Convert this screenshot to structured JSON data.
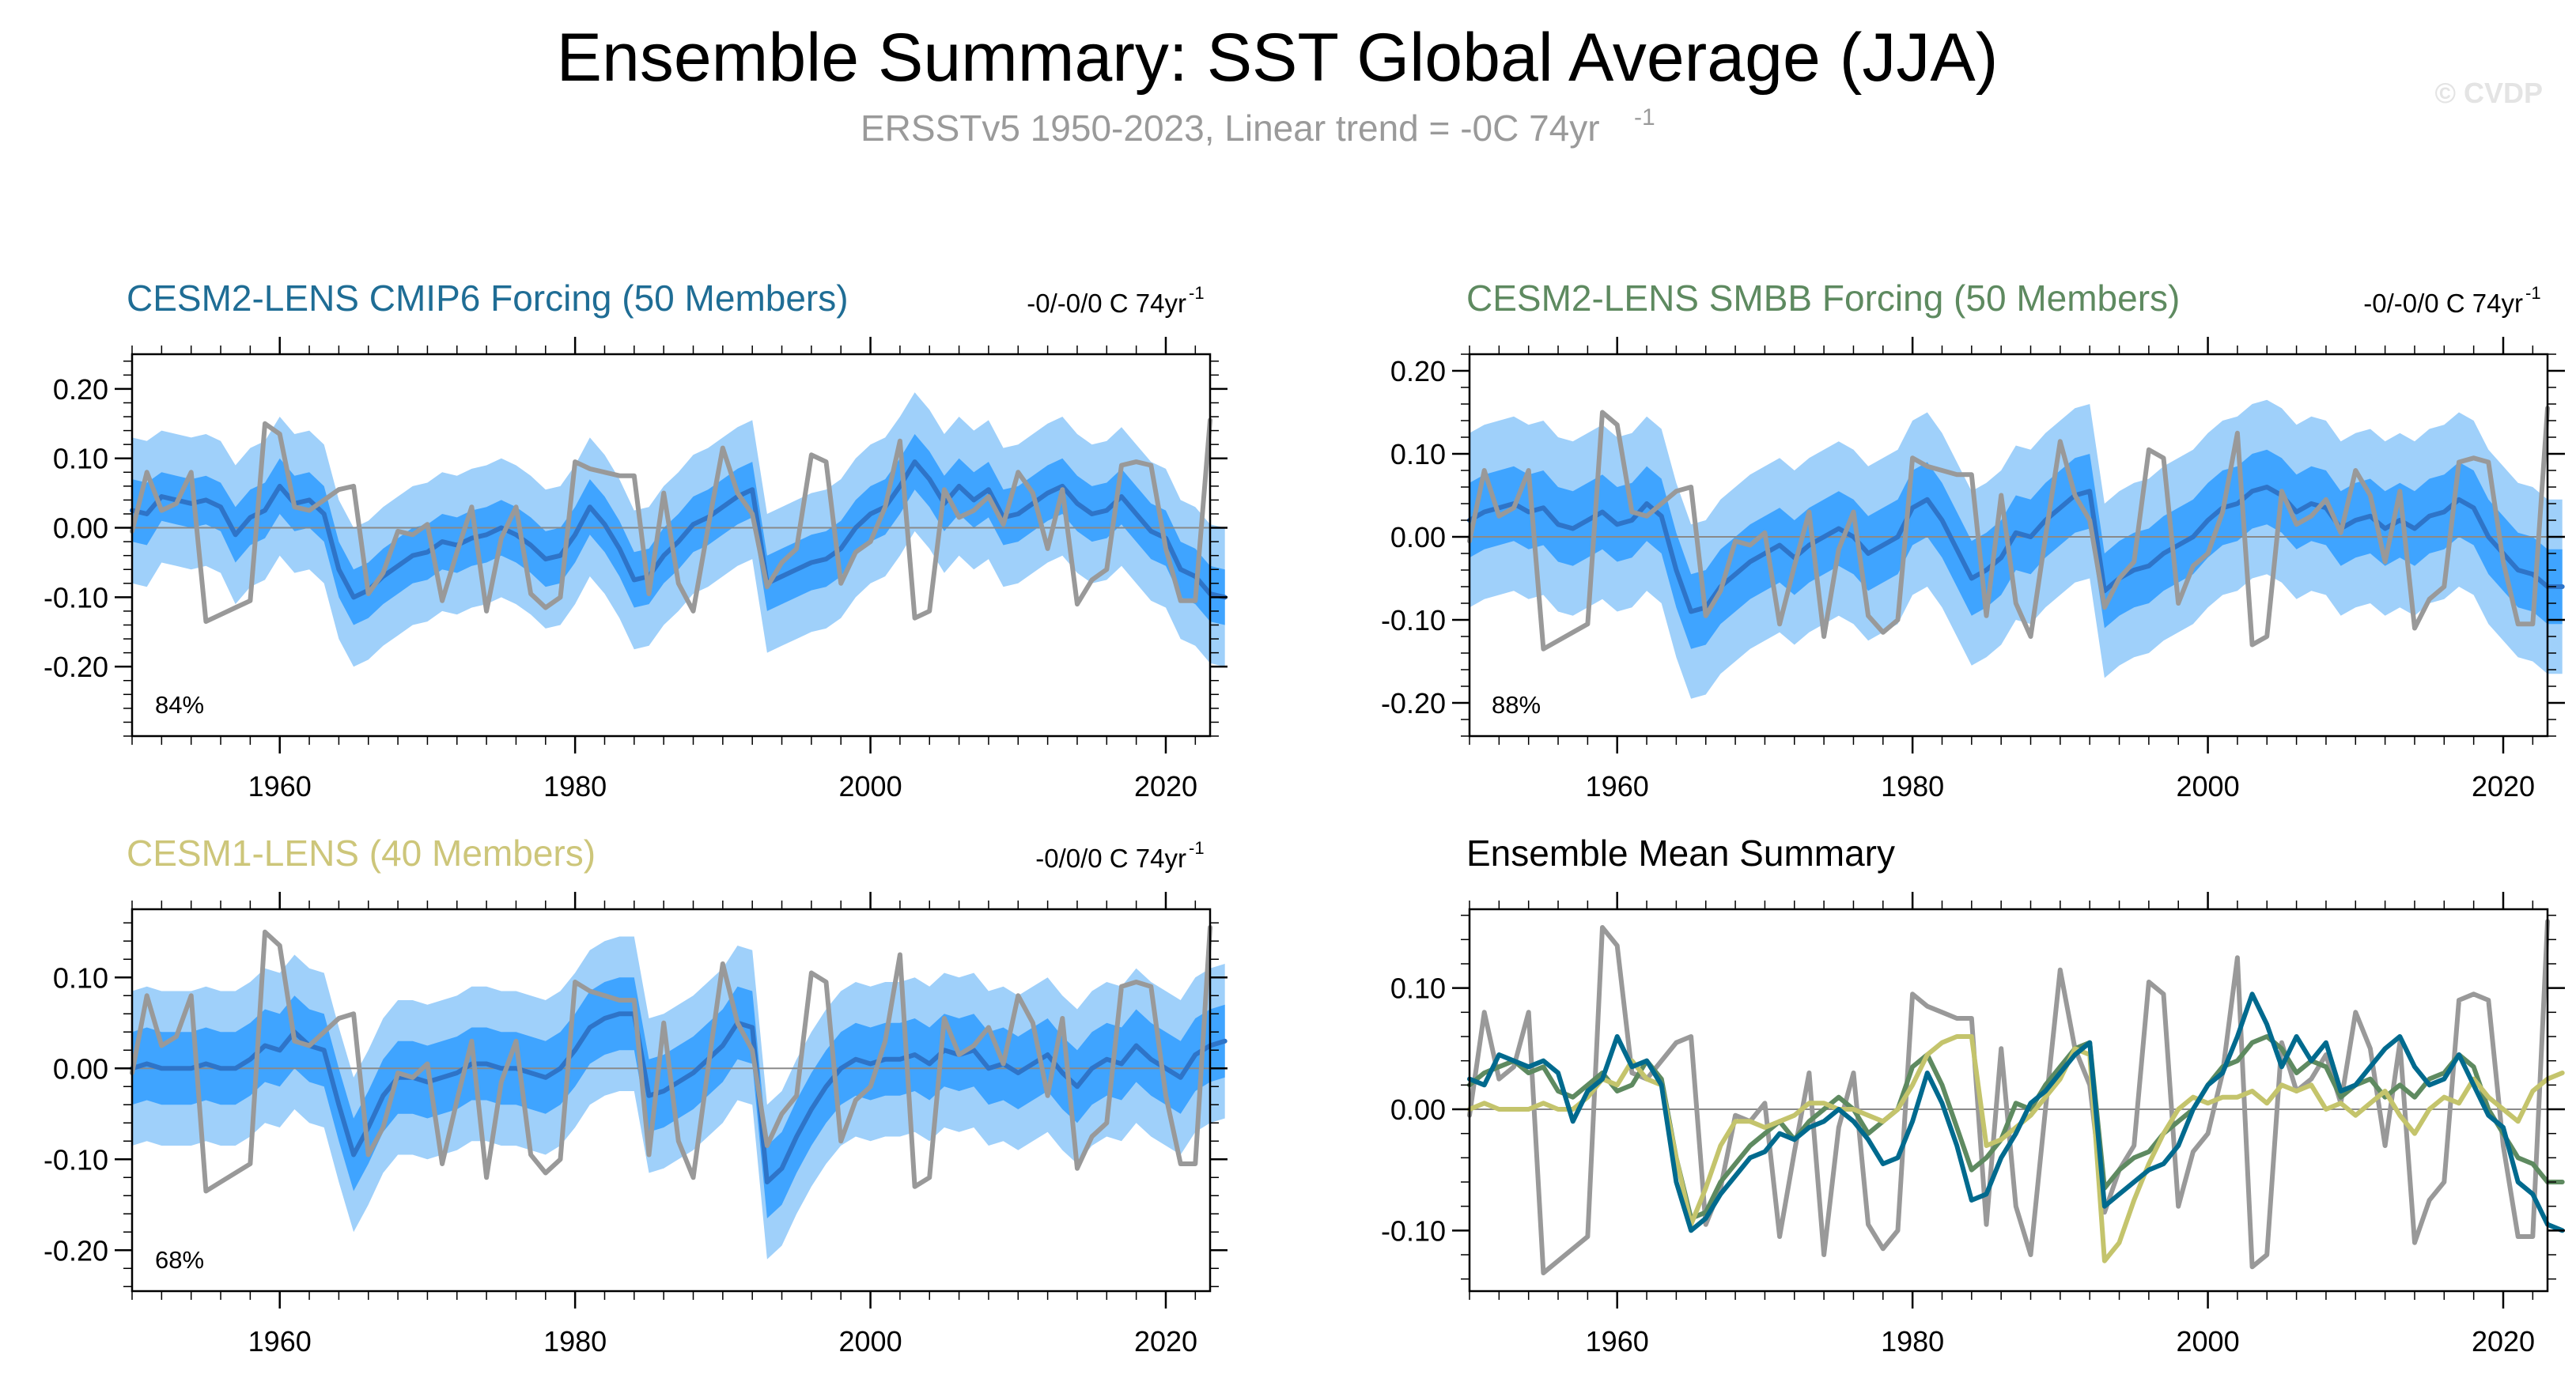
{
  "figure": {
    "title": "Ensemble Summary: SST Global Average (JJA)",
    "subtitle": "ERSSTv5 1950-2023, Linear trend = -0C 74yr",
    "subtitle_sup": "-1",
    "watermark": "© CVDP"
  },
  "colors": {
    "obs": "#999999",
    "band_outer": "#9fd0fa",
    "band_inner": "#3fa4ff",
    "ens_mean": "#2e74c8",
    "zero_line": "#8a8a8a",
    "cmip6": "#006a8e",
    "smbb": "#5e8a60",
    "lens1": "#c4c46c"
  },
  "chart_data": [
    {
      "name": "CESM2-LENS CMIP6 Forcing",
      "title": "CESM2-LENS CMIP6 Forcing (50 Members)",
      "title_color": "#1f6d95",
      "trend_text": "-0/-0/0 C 74yr",
      "trend_sup": "-1",
      "percent_label": "84%",
      "type": "area",
      "x_start": 1950,
      "xlim": [
        1950,
        2023
      ],
      "ylim": [
        -0.3,
        0.25
      ],
      "ytick_values": [
        0.2,
        0.1,
        0.0,
        -0.1,
        -0.2
      ],
      "ytick_labels": [
        "0.20",
        "0.10",
        "0.00",
        "-0.10",
        "-0.20"
      ],
      "xtick_values": [
        1960,
        1980,
        2000,
        2020
      ],
      "xtick_labels": [
        "1960",
        "1980",
        "2000",
        "2020"
      ],
      "ens_mean_key": "cmip6"
    },
    {
      "name": "CESM2-LENS SMBB Forcing",
      "title": "CESM2-LENS SMBB Forcing (50 Members)",
      "title_color": "#5e8a60",
      "trend_text": "-0/-0/0 C 74yr",
      "trend_sup": "-1",
      "percent_label": "88%",
      "type": "area",
      "x_start": 1950,
      "xlim": [
        1950,
        2023
      ],
      "ylim": [
        -0.24,
        0.22
      ],
      "ytick_values": [
        0.2,
        0.1,
        0.0,
        -0.1,
        -0.2
      ],
      "ytick_labels": [
        "0.20",
        "0.10",
        "0.00",
        "-0.10",
        "-0.20"
      ],
      "xtick_values": [
        1960,
        1980,
        2000,
        2020
      ],
      "xtick_labels": [
        "1960",
        "1980",
        "2000",
        "2020"
      ],
      "ens_mean_key": "smbb"
    },
    {
      "name": "CESM1-LENS",
      "title": "CESM1-LENS (40 Members)",
      "title_color": "#cdc67a",
      "trend_text": "-0/0/0 C 74yr",
      "trend_sup": "-1",
      "percent_label": "68%",
      "type": "area",
      "x_start": 1950,
      "xlim": [
        1950,
        2023
      ],
      "ylim": [
        -0.245,
        0.175
      ],
      "ytick_values": [
        0.1,
        0.0,
        -0.1,
        -0.2
      ],
      "ytick_labels": [
        "0.10",
        "0.00",
        "-0.10",
        "-0.20"
      ],
      "xtick_values": [
        1960,
        1980,
        2000,
        2020
      ],
      "xtick_labels": [
        "1960",
        "1980",
        "2000",
        "2020"
      ],
      "ens_mean_key": "lens1"
    },
    {
      "name": "Ensemble Mean Summary",
      "title": "Ensemble Mean Summary",
      "title_color": "#000000",
      "type": "line",
      "x_start": 1950,
      "xlim": [
        1950,
        2023
      ],
      "ylim": [
        -0.15,
        0.165
      ],
      "ytick_values": [
        0.1,
        0.0,
        -0.1
      ],
      "ytick_labels": [
        "0.10",
        "0.00",
        "-0.10"
      ],
      "xtick_values": [
        1960,
        1980,
        2000,
        2020
      ],
      "xtick_labels": [
        "1960",
        "1980",
        "2000",
        "2020"
      ],
      "series_keys": [
        "obs",
        "cmip6",
        "smbb",
        "lens1"
      ]
    }
  ],
  "series": {
    "obs": [
      -0.005,
      0.08,
      0.025,
      0.035,
      0.08,
      -0.135,
      -0.125,
      -0.115,
      -0.105,
      0.15,
      0.135,
      0.03,
      0.025,
      0.04,
      0.055,
      0.06,
      -0.095,
      -0.065,
      -0.005,
      -0.01,
      0.005,
      -0.105,
      -0.035,
      0.03,
      -0.12,
      -0.015,
      0.03,
      -0.095,
      -0.115,
      -0.1,
      0.095,
      0.085,
      0.08,
      0.075,
      0.075,
      -0.095,
      0.05,
      -0.08,
      -0.12,
      0.0,
      0.115,
      0.05,
      0.02,
      -0.085,
      -0.05,
      -0.03,
      0.105,
      0.095,
      -0.08,
      -0.035,
      -0.02,
      0.03,
      0.125,
      -0.13,
      -0.12,
      0.055,
      0.015,
      0.025,
      0.045,
      0.005,
      0.08,
      0.05,
      -0.03,
      0.055,
      -0.11,
      -0.075,
      -0.06,
      0.09,
      0.095,
      0.09,
      -0.03,
      -0.105,
      -0.105,
      0.155
    ],
    "cmip6_mean": [
      0.025,
      0.02,
      0.045,
      0.04,
      0.035,
      0.04,
      0.03,
      -0.01,
      0.015,
      0.025,
      0.06,
      0.035,
      0.04,
      0.02,
      -0.06,
      -0.1,
      -0.09,
      -0.07,
      -0.055,
      -0.04,
      -0.035,
      -0.02,
      -0.025,
      -0.015,
      -0.01,
      0.0,
      -0.01,
      -0.025,
      -0.045,
      -0.04,
      -0.01,
      0.03,
      0.005,
      -0.03,
      -0.075,
      -0.07,
      -0.04,
      -0.02,
      0.005,
      0.015,
      0.03,
      0.045,
      0.055,
      -0.08,
      -0.07,
      -0.06,
      -0.05,
      -0.045,
      -0.03,
      0.0,
      0.02,
      0.03,
      0.06,
      0.095,
      0.07,
      0.035,
      0.06,
      0.04,
      0.055,
      0.015,
      0.02,
      0.035,
      0.05,
      0.06,
      0.035,
      0.02,
      0.025,
      0.045,
      0.02,
      -0.005,
      -0.015,
      -0.06,
      -0.07,
      -0.095,
      -0.1
    ],
    "smbb_mean": [
      0.02,
      0.03,
      0.035,
      0.04,
      0.03,
      0.035,
      0.015,
      0.01,
      0.02,
      0.03,
      0.015,
      0.02,
      0.04,
      0.025,
      -0.04,
      -0.09,
      -0.085,
      -0.06,
      -0.045,
      -0.03,
      -0.02,
      -0.01,
      -0.025,
      -0.01,
      0.0,
      0.01,
      0.0,
      -0.02,
      -0.01,
      0.0,
      0.035,
      0.045,
      0.02,
      -0.015,
      -0.05,
      -0.04,
      -0.025,
      0.005,
      0.0,
      0.02,
      0.035,
      0.05,
      0.055,
      -0.065,
      -0.05,
      -0.04,
      -0.035,
      -0.02,
      -0.01,
      0.0,
      0.02,
      0.035,
      0.04,
      0.055,
      0.06,
      0.05,
      0.03,
      0.04,
      0.035,
      0.01,
      0.02,
      0.025,
      0.01,
      0.02,
      0.01,
      0.025,
      0.03,
      0.045,
      0.035,
      0.0,
      -0.02,
      -0.04,
      -0.045,
      -0.06,
      -0.06
    ],
    "lens1_mean": [
      0.0,
      0.005,
      0.0,
      0.0,
      0.0,
      0.005,
      0.0,
      0.0,
      0.01,
      0.025,
      0.02,
      0.04,
      0.025,
      0.02,
      -0.04,
      -0.095,
      -0.065,
      -0.03,
      -0.01,
      -0.01,
      -0.015,
      -0.01,
      -0.005,
      0.005,
      0.005,
      0.0,
      0.0,
      -0.005,
      -0.01,
      0.0,
      0.02,
      0.045,
      0.055,
      0.06,
      0.06,
      -0.03,
      -0.025,
      -0.015,
      -0.005,
      0.01,
      0.025,
      0.05,
      0.045,
      -0.125,
      -0.11,
      -0.075,
      -0.045,
      -0.02,
      0.0,
      0.01,
      0.005,
      0.01,
      0.01,
      0.015,
      0.005,
      0.02,
      0.015,
      0.02,
      0.0,
      0.005,
      -0.005,
      0.005,
      0.015,
      -0.005,
      -0.02,
      0.0,
      0.01,
      0.005,
      0.025,
      0.01,
      0.0,
      -0.01,
      0.015,
      0.025,
      0.03
    ],
    "cmip6_inner": [
      0.07,
      0.065,
      0.08,
      0.075,
      0.07,
      0.075,
      0.065,
      0.03,
      0.055,
      0.065,
      0.1,
      0.075,
      0.08,
      0.06,
      -0.02,
      -0.06,
      -0.05,
      -0.03,
      -0.015,
      0.0,
      0.005,
      0.02,
      0.015,
      0.025,
      0.03,
      0.04,
      0.03,
      0.015,
      -0.005,
      0.0,
      0.03,
      0.07,
      0.045,
      0.01,
      -0.035,
      -0.03,
      0.0,
      0.02,
      0.045,
      0.055,
      0.07,
      0.085,
      0.095,
      -0.04,
      -0.03,
      -0.02,
      -0.01,
      -0.005,
      0.01,
      0.04,
      0.06,
      0.07,
      0.1,
      0.135,
      0.11,
      0.075,
      0.1,
      0.08,
      0.095,
      0.055,
      0.06,
      0.075,
      0.09,
      0.1,
      0.075,
      0.06,
      0.065,
      0.085,
      0.06,
      0.035,
      0.025,
      -0.02,
      -0.03,
      -0.055,
      -0.06
    ],
    "cmip6_outer": [
      0.13,
      0.125,
      0.14,
      0.135,
      0.13,
      0.135,
      0.125,
      0.09,
      0.115,
      0.125,
      0.16,
      0.135,
      0.14,
      0.12,
      0.04,
      0.0,
      0.01,
      0.03,
      0.045,
      0.06,
      0.065,
      0.08,
      0.075,
      0.085,
      0.09,
      0.1,
      0.09,
      0.075,
      0.055,
      0.06,
      0.09,
      0.13,
      0.105,
      0.07,
      0.025,
      0.03,
      0.06,
      0.08,
      0.105,
      0.115,
      0.13,
      0.145,
      0.155,
      0.02,
      0.03,
      0.04,
      0.05,
      0.055,
      0.07,
      0.1,
      0.12,
      0.13,
      0.16,
      0.195,
      0.17,
      0.135,
      0.16,
      0.14,
      0.155,
      0.115,
      0.12,
      0.135,
      0.15,
      0.16,
      0.135,
      0.12,
      0.125,
      0.145,
      0.12,
      0.095,
      0.085,
      0.04,
      0.03,
      0.005,
      0.0
    ],
    "smbb_inner": [
      0.065,
      0.075,
      0.08,
      0.085,
      0.075,
      0.08,
      0.06,
      0.055,
      0.065,
      0.075,
      0.06,
      0.065,
      0.085,
      0.07,
      0.005,
      -0.045,
      -0.04,
      -0.015,
      0.0,
      0.015,
      0.025,
      0.035,
      0.02,
      0.035,
      0.045,
      0.055,
      0.045,
      0.025,
      0.035,
      0.045,
      0.08,
      0.09,
      0.065,
      0.03,
      -0.005,
      0.005,
      0.02,
      0.05,
      0.045,
      0.065,
      0.08,
      0.095,
      0.1,
      -0.02,
      -0.005,
      0.005,
      0.01,
      0.025,
      0.035,
      0.045,
      0.065,
      0.08,
      0.085,
      0.1,
      0.105,
      0.095,
      0.075,
      0.085,
      0.08,
      0.055,
      0.065,
      0.07,
      0.055,
      0.065,
      0.055,
      0.07,
      0.075,
      0.09,
      0.08,
      0.045,
      0.025,
      0.005,
      0.0,
      -0.015,
      -0.015
    ],
    "smbb_outer": [
      0.125,
      0.135,
      0.14,
      0.145,
      0.135,
      0.14,
      0.12,
      0.115,
      0.125,
      0.135,
      0.12,
      0.125,
      0.145,
      0.13,
      0.065,
      0.015,
      0.02,
      0.045,
      0.06,
      0.075,
      0.085,
      0.095,
      0.08,
      0.095,
      0.105,
      0.115,
      0.105,
      0.085,
      0.095,
      0.105,
      0.14,
      0.15,
      0.125,
      0.09,
      0.055,
      0.065,
      0.08,
      0.11,
      0.105,
      0.125,
      0.14,
      0.155,
      0.16,
      0.04,
      0.055,
      0.065,
      0.07,
      0.085,
      0.095,
      0.105,
      0.125,
      0.14,
      0.145,
      0.16,
      0.165,
      0.155,
      0.135,
      0.145,
      0.14,
      0.115,
      0.125,
      0.13,
      0.115,
      0.125,
      0.115,
      0.13,
      0.135,
      0.15,
      0.14,
      0.105,
      0.085,
      0.065,
      0.06,
      0.045,
      0.045
    ],
    "lens1_inner": [
      0.04,
      0.045,
      0.04,
      0.04,
      0.04,
      0.045,
      0.04,
      0.04,
      0.05,
      0.065,
      0.06,
      0.08,
      0.065,
      0.06,
      0.0,
      -0.055,
      -0.025,
      0.01,
      0.03,
      0.03,
      0.025,
      0.03,
      0.035,
      0.045,
      0.045,
      0.04,
      0.04,
      0.035,
      0.03,
      0.04,
      0.06,
      0.085,
      0.095,
      0.1,
      0.1,
      0.01,
      0.015,
      0.025,
      0.035,
      0.05,
      0.065,
      0.09,
      0.085,
      -0.085,
      -0.07,
      -0.035,
      -0.005,
      0.02,
      0.04,
      0.05,
      0.045,
      0.05,
      0.05,
      0.055,
      0.045,
      0.06,
      0.055,
      0.06,
      0.04,
      0.045,
      0.035,
      0.045,
      0.055,
      0.035,
      0.02,
      0.04,
      0.05,
      0.045,
      0.065,
      0.05,
      0.04,
      0.03,
      0.055,
      0.065,
      0.07
    ],
    "lens1_outer": [
      0.085,
      0.09,
      0.085,
      0.085,
      0.085,
      0.09,
      0.085,
      0.085,
      0.095,
      0.11,
      0.105,
      0.125,
      0.11,
      0.105,
      0.045,
      -0.01,
      0.02,
      0.055,
      0.075,
      0.075,
      0.07,
      0.075,
      0.08,
      0.09,
      0.09,
      0.085,
      0.085,
      0.08,
      0.075,
      0.085,
      0.105,
      0.13,
      0.14,
      0.145,
      0.145,
      0.055,
      0.06,
      0.07,
      0.08,
      0.095,
      0.11,
      0.135,
      0.13,
      -0.04,
      -0.025,
      0.01,
      0.04,
      0.065,
      0.085,
      0.095,
      0.09,
      0.095,
      0.095,
      0.1,
      0.09,
      0.105,
      0.1,
      0.105,
      0.085,
      0.09,
      0.08,
      0.09,
      0.1,
      0.08,
      0.065,
      0.085,
      0.095,
      0.09,
      0.11,
      0.095,
      0.085,
      0.075,
      0.1,
      0.11,
      0.115
    ]
  }
}
